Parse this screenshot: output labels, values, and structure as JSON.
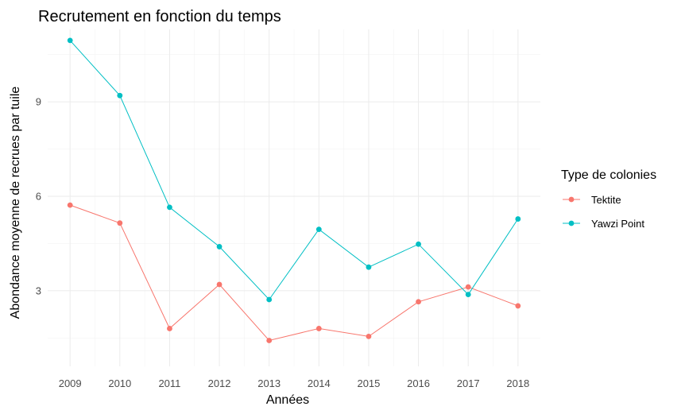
{
  "chart_data": {
    "type": "line",
    "title": "Recrutement en fonction du temps",
    "xlabel": "Années",
    "ylabel": "Abondance moyenne de recrues par tuile",
    "x": [
      2009,
      2010,
      2011,
      2012,
      2013,
      2014,
      2015,
      2016,
      2017,
      2018
    ],
    "x_tick_labels": [
      "2009",
      "2010",
      "2011",
      "2012",
      "2013",
      "2014",
      "2015",
      "2016",
      "2017",
      "2018"
    ],
    "y_ticks": [
      3,
      6,
      9
    ],
    "y_tick_labels": [
      "3",
      "6",
      "9"
    ],
    "ylim": [
      0.6,
      11.3
    ],
    "grid": true,
    "legend_position": "right",
    "legend_title": "Type de colonies",
    "series": [
      {
        "name": "Tektite",
        "color": "#F8766D",
        "values": [
          5.72,
          5.15,
          1.8,
          3.2,
          1.42,
          1.8,
          1.55,
          2.65,
          3.12,
          2.52
        ]
      },
      {
        "name": "Yawzi Point",
        "color": "#00BFC4",
        "values": [
          10.95,
          9.2,
          5.65,
          4.4,
          2.72,
          4.95,
          3.75,
          4.48,
          2.88,
          5.28
        ]
      }
    ]
  }
}
